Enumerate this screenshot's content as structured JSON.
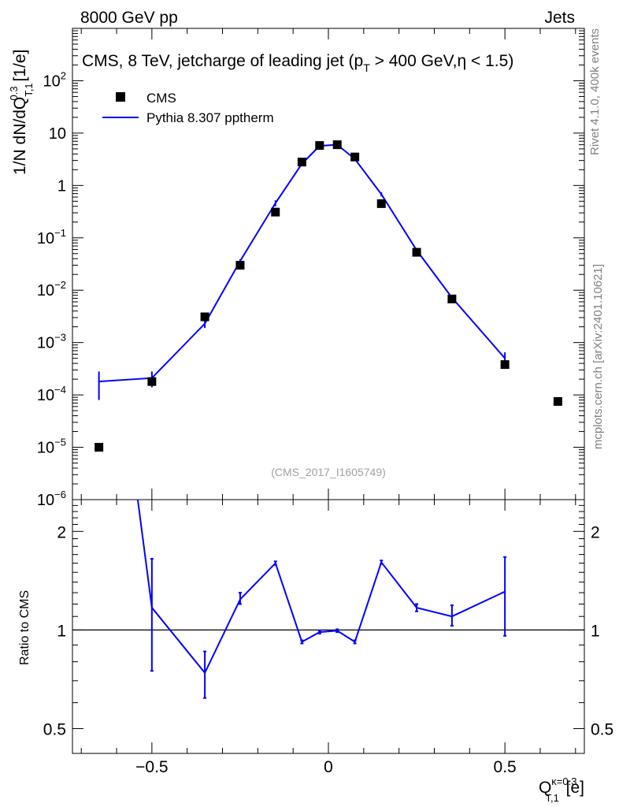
{
  "header": {
    "left": "8000 GeV pp",
    "right": "Jets"
  },
  "side_labels": {
    "rivet": "Rivet 4.1.0,  400k events",
    "mcplots": "mcplots.cern.ch [arXiv:2401.10621]"
  },
  "chart_data": [
    {
      "type": "scatter",
      "title": "CMS, 8 TeV, jetcharge of leading jet (p_T > 400 GeV,η < 1.5)",
      "title_parts": {
        "main": "CMS, 8 TeV, jetcharge of leading jet (p",
        "sub": "T",
        "tail": " > 400 GeV,η < 1.5)"
      },
      "analysis_id": "(CMS_2017_I1605749)",
      "ylabel": "1/N dN/dQ^{0.3}_{T,1} [1/e]",
      "ylabel_parts": {
        "main": "1/N dN/dQ",
        "sup": "0.3",
        "sub": "T,1",
        "tail": " [1/e]"
      },
      "yscale": "log",
      "xlim": [
        -0.725,
        0.725
      ],
      "ylim": [
        1e-06,
        1000
      ],
      "y_tick_labels": [
        "10^{-6}",
        "10^{-5}",
        "10^{-4}",
        "10^{-3}",
        "10^{-2}",
        "10^{-1}",
        "1",
        "10",
        "10^{2}"
      ],
      "legend": [
        "CMS",
        "Pythia 8.307 pptherm"
      ],
      "legend_position": "top-left",
      "series": [
        {
          "name": "CMS",
          "style": "markers",
          "color": "#000000",
          "x": [
            -0.65,
            -0.5,
            -0.35,
            -0.25,
            -0.15,
            -0.075,
            -0.025,
            0.025,
            0.075,
            0.15,
            0.25,
            0.35,
            0.5,
            0.65
          ],
          "values": [
            1e-05,
            0.00018,
            0.0031,
            0.03,
            0.31,
            2.8,
            5.8,
            6.0,
            3.5,
            0.45,
            0.053,
            0.0068,
            0.00038,
            7.5e-05
          ]
        },
        {
          "name": "Pythia 8.307 pptherm",
          "style": "line",
          "color": "#0000ff",
          "x": [
            -0.65,
            -0.5,
            -0.35,
            -0.25,
            -0.15,
            -0.075,
            -0.025,
            0.025,
            0.075,
            0.15,
            0.25,
            0.35,
            0.5
          ],
          "values": [
            0.00018,
            0.00021,
            0.0023,
            0.036,
            0.46,
            2.6,
            5.7,
            6.0,
            3.2,
            0.68,
            0.058,
            0.0072,
            0.0005
          ],
          "err_low": [
            0.0001,
            7e-05,
            0.0004,
            0.003,
            0.06,
            0.15,
            0.1,
            0.1,
            0.1,
            0.06,
            0.004,
            0.0006,
            0.00015
          ],
          "err_high": [
            0.0001,
            7e-05,
            0.0004,
            0.003,
            0.06,
            0.15,
            0.1,
            0.1,
            0.1,
            0.06,
            0.004,
            0.0006,
            0.00015
          ]
        }
      ]
    },
    {
      "type": "line",
      "ylabel": "Ratio to CMS",
      "xlabel": "Q^{κ=0.3}_{T,1} [e]",
      "xlabel_parts": {
        "main": "Q",
        "sup": "κ=0.3",
        "sub": "T,1",
        "tail": " [e]"
      },
      "yscale": "log",
      "xlim": [
        -0.725,
        0.725
      ],
      "ylim": [
        0.42,
        2.5
      ],
      "y_ticks": [
        0.5,
        1,
        2
      ],
      "y_tick_labels": [
        "0.5",
        "1",
        "2"
      ],
      "x_ticks": [
        -0.5,
        0,
        0.5
      ],
      "x_tick_labels": [
        "−0.5",
        "0",
        "0.5"
      ],
      "reference_line": 1,
      "series": [
        {
          "name": "Pythia 8.307 pptherm / CMS",
          "color": "#0000ff",
          "x": [
            -0.54,
            -0.5,
            -0.35,
            -0.25,
            -0.15,
            -0.075,
            -0.025,
            0.025,
            0.075,
            0.15,
            0.25,
            0.35,
            0.5
          ],
          "values": [
            2.5,
            1.17,
            0.74,
            1.24,
            1.6,
            0.92,
            0.985,
            0.995,
            0.92,
            1.61,
            1.17,
            1.1,
            1.31
          ],
          "err_low": [
            0,
            0.42,
            0.12,
            0.04,
            0.02,
            0.01,
            0.01,
            0.01,
            0.01,
            0.02,
            0.03,
            0.07,
            0.35
          ],
          "err_high": [
            0,
            0.48,
            0.12,
            0.06,
            0.02,
            0.01,
            0.01,
            0.01,
            0.01,
            0.02,
            0.03,
            0.09,
            0.36
          ]
        }
      ]
    }
  ]
}
